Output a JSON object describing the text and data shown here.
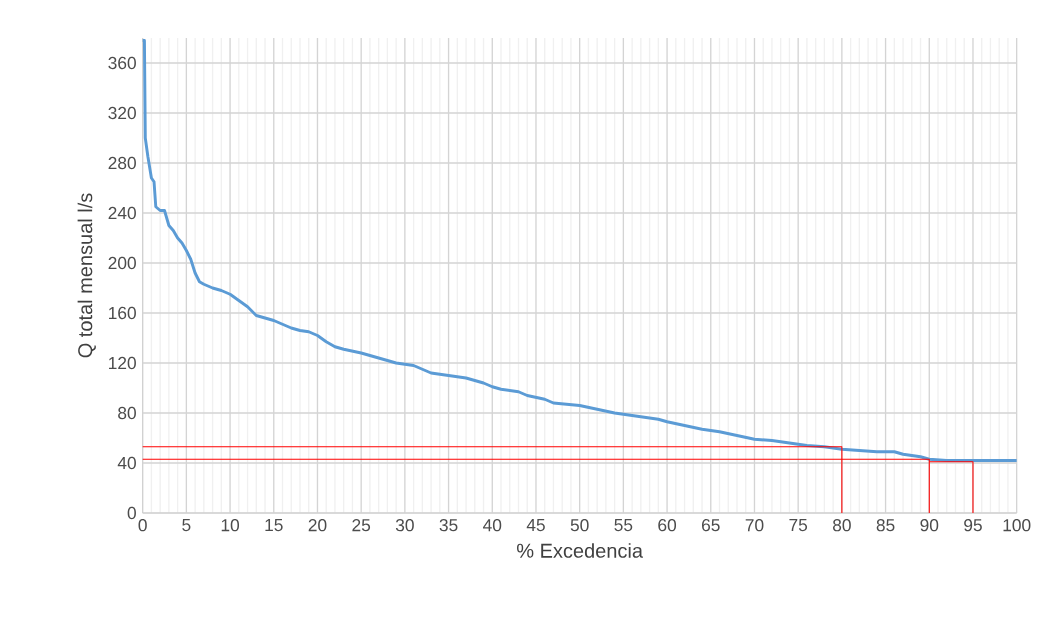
{
  "chart_data": {
    "type": "line",
    "xlabel": "% Excedencia",
    "ylabel": "Q total mensual  l/s",
    "xlim": [
      0,
      100
    ],
    "xticks": [
      0,
      5,
      10,
      15,
      20,
      25,
      30,
      35,
      40,
      45,
      50,
      55,
      60,
      65,
      70,
      75,
      80,
      85,
      90,
      95,
      100
    ],
    "ylim": [
      0,
      380
    ],
    "yticks": [
      0,
      40,
      80,
      120,
      160,
      200,
      240,
      280,
      320,
      360
    ],
    "grid": true,
    "marker": "none",
    "series": [
      {
        "color": "#5b9bd5",
        "x": [
          0,
          0.2,
          0.3,
          0.6,
          1,
          1.3,
          1.5,
          2,
          2.5,
          3,
          3.5,
          4,
          4.5,
          5,
          5.5,
          6,
          6.5,
          7,
          8,
          9,
          10,
          11,
          12,
          13,
          14,
          15,
          16,
          17,
          18,
          19,
          20,
          21,
          22,
          23,
          25,
          27,
          29,
          31,
          32,
          33,
          35,
          37,
          39,
          40,
          41,
          43,
          44,
          46,
          47,
          50,
          52,
          54,
          56,
          58,
          59,
          60,
          62,
          64,
          66,
          68,
          70,
          72,
          74,
          76,
          78,
          80,
          82,
          84,
          86,
          87,
          88,
          89,
          90,
          92,
          95,
          100
        ],
        "values": [
          378,
          378,
          300,
          285,
          268,
          265,
          245,
          242,
          242,
          230,
          226,
          220,
          216,
          210,
          203,
          192,
          185,
          183,
          180,
          178,
          175,
          170,
          165,
          158,
          156,
          154,
          151,
          148,
          146,
          145,
          142,
          137,
          133,
          131,
          128,
          124,
          120,
          118,
          115,
          112,
          110,
          108,
          104,
          101,
          99,
          97,
          94,
          91,
          88,
          86,
          83,
          80,
          78,
          76,
          75,
          73,
          70,
          67,
          65,
          62,
          59,
          58,
          56,
          54,
          53,
          51,
          50,
          49,
          49,
          47,
          46,
          45,
          43,
          42,
          42,
          42
        ]
      },
      {
        "color": "#ff0000",
        "x": [
          0,
          80,
          80
        ],
        "values": [
          53,
          53,
          0
        ]
      },
      {
        "color": "#ff0000",
        "x": [
          0,
          90,
          90
        ],
        "values": [
          43,
          43,
          0
        ]
      },
      {
        "color": "#ff0000",
        "x": [
          90,
          95,
          95
        ],
        "values": [
          41,
          41,
          0
        ]
      }
    ]
  }
}
